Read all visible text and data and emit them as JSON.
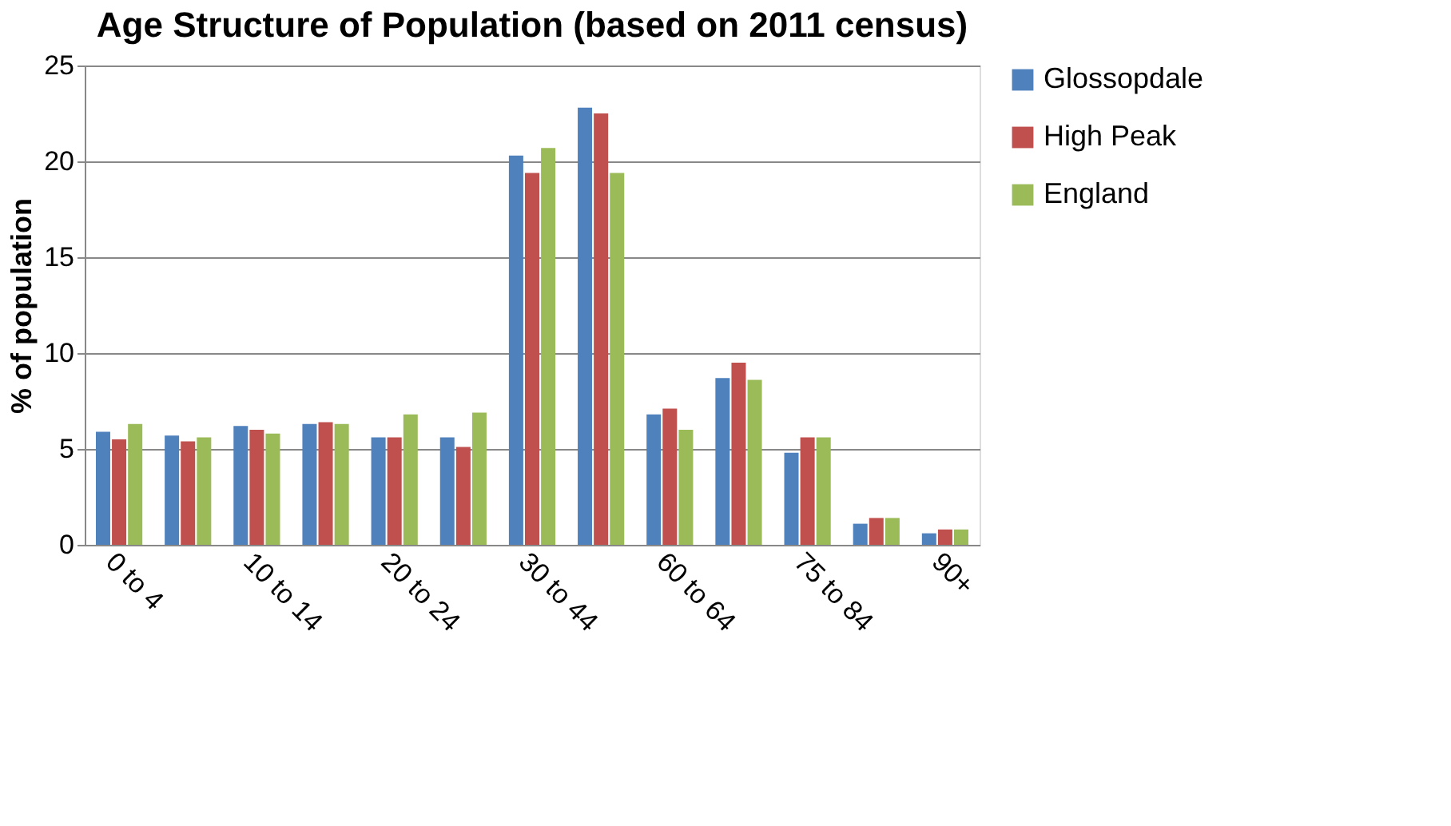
{
  "chart_data": {
    "type": "bar",
    "title": "Age Structure of Population (based on 2011 census)",
    "ylabel": "% of population",
    "categories": [
      "0 to 4",
      null,
      "10 to 14",
      null,
      "20 to 24",
      null,
      "30 to 44",
      null,
      "60 to 64",
      null,
      "75 to 84",
      null,
      "90+"
    ],
    "series": [
      {
        "name": "Glossopdale",
        "color": "#4f81bd",
        "values": [
          5.9,
          5.7,
          6.2,
          6.3,
          5.6,
          5.6,
          20.3,
          22.8,
          6.8,
          8.7,
          4.8,
          1.1,
          0.6
        ]
      },
      {
        "name": "High Peak",
        "color": "#c0504d",
        "values": [
          5.5,
          5.4,
          6.0,
          6.4,
          5.6,
          5.1,
          19.4,
          22.5,
          7.1,
          9.5,
          5.6,
          1.4,
          0.8
        ]
      },
      {
        "name": "England",
        "color": "#9bbb59",
        "values": [
          6.3,
          5.6,
          5.8,
          6.3,
          6.8,
          6.9,
          20.7,
          19.4,
          6.0,
          8.6,
          5.6,
          1.4,
          0.8
        ]
      }
    ],
    "ylim": [
      0,
      25
    ],
    "yticks": [
      0,
      5,
      10,
      15,
      20,
      25
    ],
    "grid": "y",
    "legend": "right"
  }
}
